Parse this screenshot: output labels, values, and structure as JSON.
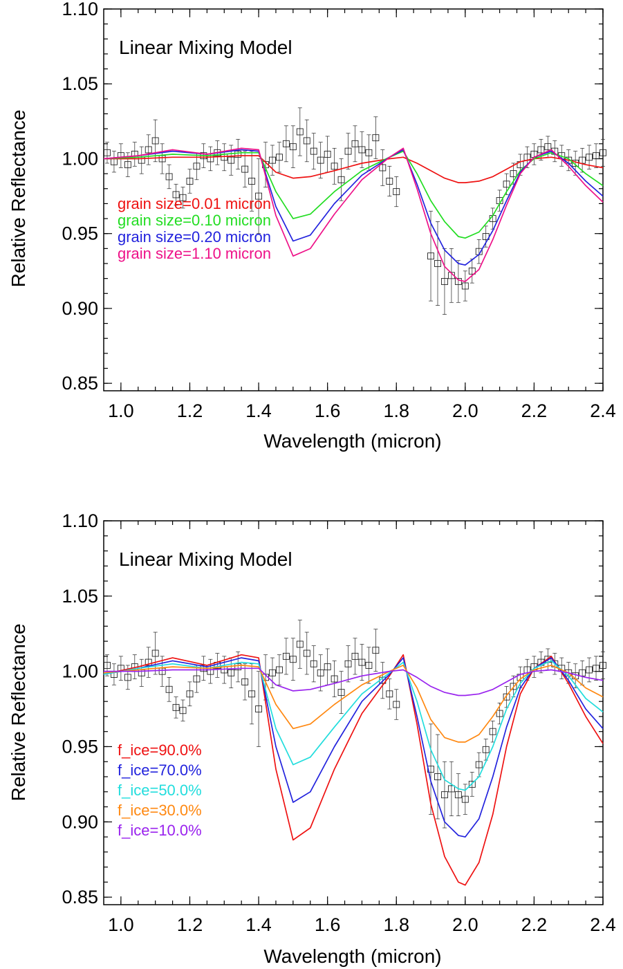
{
  "chart_data": [
    {
      "type": "line",
      "title": "Linear Mixing Model",
      "xlabel": "Wavelength (micron)",
      "ylabel": "Relative Reflectance",
      "xlim": [
        0.95,
        2.4
      ],
      "ylim": [
        0.845,
        1.1
      ],
      "xticks": [
        "1.0",
        "1.2",
        "1.4",
        "1.6",
        "1.8",
        "2.0",
        "2.2",
        "2.4"
      ],
      "yticks": [
        "0.85",
        "0.90",
        "0.95",
        "1.00",
        "1.05",
        "1.10"
      ],
      "x": [
        0.95,
        1.05,
        1.15,
        1.25,
        1.35,
        1.4,
        1.45,
        1.5,
        1.55,
        1.62,
        1.7,
        1.78,
        1.82,
        1.86,
        1.9,
        1.94,
        1.98,
        2.0,
        2.04,
        2.08,
        2.12,
        2.16,
        2.2,
        2.25,
        2.3,
        2.35,
        2.4
      ],
      "series": [
        {
          "name": "grain size=0.01 micron",
          "color": "#ee1111",
          "values": [
            1.0,
            1.0,
            1.001,
            1.001,
            1.002,
            1.002,
            0.991,
            0.987,
            0.988,
            0.992,
            0.997,
            1.0,
            1.001,
            0.997,
            0.992,
            0.987,
            0.984,
            0.984,
            0.985,
            0.988,
            0.993,
            0.998,
            1.0,
            1.001,
            0.999,
            0.996,
            0.994
          ]
        },
        {
          "name": "grain size=0.10 micron",
          "color": "#22dd22",
          "values": [
            1.0,
            1.001,
            1.003,
            1.002,
            1.004,
            1.004,
            0.978,
            0.96,
            0.963,
            0.978,
            0.992,
            1.001,
            1.005,
            0.99,
            0.972,
            0.958,
            0.948,
            0.947,
            0.951,
            0.962,
            0.978,
            0.992,
            1.0,
            1.004,
            1.0,
            0.99,
            0.982
          ]
        },
        {
          "name": "grain size=0.20 micron",
          "color": "#2222dd",
          "values": [
            1.0,
            1.002,
            1.005,
            1.003,
            1.006,
            1.005,
            0.968,
            0.945,
            0.949,
            0.97,
            0.989,
            1.001,
            1.006,
            0.983,
            0.957,
            0.939,
            0.93,
            0.929,
            0.936,
            0.952,
            0.972,
            0.991,
            1.001,
            1.005,
            0.997,
            0.985,
            0.975
          ]
        },
        {
          "name": "grain size=1.10 micron",
          "color": "#ee1188",
          "values": [
            1.0,
            1.002,
            1.006,
            1.003,
            1.007,
            1.006,
            0.962,
            0.935,
            0.94,
            0.963,
            0.986,
            1.001,
            1.007,
            0.98,
            0.95,
            0.928,
            0.919,
            0.918,
            0.926,
            0.946,
            0.969,
            0.99,
            1.001,
            1.006,
            0.995,
            0.982,
            0.971
          ]
        }
      ]
    },
    {
      "type": "line",
      "title": "Linear Mixing Model",
      "xlabel": "Wavelength (micron)",
      "ylabel": "Relative Reflectance",
      "xlim": [
        0.95,
        2.4
      ],
      "ylim": [
        0.845,
        1.1
      ],
      "xticks": [
        "1.0",
        "1.2",
        "1.4",
        "1.6",
        "1.8",
        "2.0",
        "2.2",
        "2.4"
      ],
      "yticks": [
        "0.85",
        "0.90",
        "0.95",
        "1.00",
        "1.05",
        "1.10"
      ],
      "x": [
        0.95,
        1.05,
        1.15,
        1.25,
        1.35,
        1.4,
        1.45,
        1.5,
        1.55,
        1.62,
        1.7,
        1.78,
        1.82,
        1.86,
        1.9,
        1.94,
        1.98,
        2.0,
        2.04,
        2.08,
        2.12,
        2.16,
        2.2,
        2.25,
        2.3,
        2.35,
        2.4
      ],
      "series": [
        {
          "name": "f_ice=90.0%",
          "color": "#ee1111",
          "values": [
            0.998,
            1.003,
            1.009,
            1.004,
            1.011,
            1.009,
            0.935,
            0.888,
            0.896,
            0.935,
            0.972,
            0.997,
            1.011,
            0.965,
            0.912,
            0.877,
            0.86,
            0.858,
            0.873,
            0.905,
            0.95,
            0.985,
            1.002,
            1.01,
            0.992,
            0.97,
            0.952
          ]
        },
        {
          "name": "f_ice=70.0%",
          "color": "#2222dd",
          "values": [
            0.998,
            1.002,
            1.007,
            1.003,
            1.009,
            1.007,
            0.95,
            0.913,
            0.92,
            0.95,
            0.98,
            0.998,
            1.009,
            0.97,
            0.927,
            0.9,
            0.891,
            0.89,
            0.902,
            0.93,
            0.963,
            0.989,
            1.002,
            1.009,
            0.994,
            0.975,
            0.962
          ]
        },
        {
          "name": "f_ice=50.0%",
          "color": "#22dddd",
          "values": [
            0.998,
            1.002,
            1.005,
            1.002,
            1.006,
            1.005,
            0.962,
            0.938,
            0.943,
            0.963,
            0.985,
            0.999,
            1.006,
            0.98,
            0.948,
            0.928,
            0.922,
            0.921,
            0.93,
            0.95,
            0.975,
            0.992,
            1.002,
            1.007,
            0.997,
            0.982,
            0.973
          ]
        },
        {
          "name": "f_ice=30.0%",
          "color": "#ff8811",
          "values": [
            0.999,
            1.001,
            1.003,
            1.002,
            1.004,
            1.003,
            0.978,
            0.962,
            0.965,
            0.978,
            0.991,
            1.0,
            1.004,
            0.989,
            0.968,
            0.956,
            0.953,
            0.953,
            0.958,
            0.97,
            0.984,
            0.995,
            1.001,
            1.004,
            0.999,
            0.989,
            0.983
          ]
        },
        {
          "name": "f_ice=10.0%",
          "color": "#9922ee",
          "values": [
            1.0,
            1.0,
            1.001,
            1.001,
            1.002,
            1.002,
            0.991,
            0.987,
            0.988,
            0.992,
            0.997,
            1.0,
            1.001,
            0.996,
            0.99,
            0.986,
            0.984,
            0.984,
            0.985,
            0.988,
            0.993,
            0.998,
            1.0,
            1.001,
            0.999,
            0.996,
            0.994
          ]
        }
      ]
    }
  ],
  "observed": {
    "x": [
      0.96,
      0.98,
      1.0,
      1.02,
      1.04,
      1.06,
      1.08,
      1.1,
      1.12,
      1.14,
      1.16,
      1.18,
      1.2,
      1.22,
      1.24,
      1.26,
      1.28,
      1.3,
      1.32,
      1.34,
      1.36,
      1.38,
      1.4,
      1.42,
      1.44,
      1.46,
      1.48,
      1.5,
      1.52,
      1.54,
      1.56,
      1.58,
      1.6,
      1.62,
      1.64,
      1.66,
      1.68,
      1.7,
      1.72,
      1.74,
      1.76,
      1.78,
      1.8,
      1.9,
      1.92,
      1.94,
      1.96,
      1.98,
      2.0,
      2.02,
      2.04,
      2.06,
      2.08,
      2.1,
      2.12,
      2.14,
      2.16,
      2.18,
      2.2,
      2.22,
      2.24,
      2.26,
      2.28,
      2.3,
      2.32,
      2.34,
      2.36,
      2.38,
      2.4
    ],
    "y": [
      1.004,
      0.998,
      1.002,
      0.996,
      1.003,
      0.999,
      1.006,
      1.012,
      1.0,
      0.988,
      0.976,
      0.974,
      0.985,
      0.995,
      1.002,
      1.0,
      1.004,
      1.001,
      0.999,
      1.003,
      0.993,
      0.985,
      0.975,
      0.996,
      0.999,
      1.001,
      1.01,
      1.008,
      1.018,
      1.012,
      1.005,
      0.999,
      1.003,
      0.995,
      0.986,
      1.005,
      1.01,
      1.006,
      1.004,
      1.014,
      0.994,
      0.985,
      0.978,
      0.935,
      0.93,
      0.918,
      0.922,
      0.918,
      0.915,
      0.925,
      0.938,
      0.948,
      0.96,
      0.972,
      0.983,
      0.99,
      0.996,
      1.001,
      1.003,
      1.006,
      1.008,
      1.005,
      1.002,
      0.999,
      0.997,
      0.999,
      1.001,
      1.002,
      1.004
    ],
    "err": [
      0.007,
      0.007,
      0.008,
      0.008,
      0.008,
      0.009,
      0.01,
      0.014,
      0.01,
      0.008,
      0.007,
      0.007,
      0.008,
      0.009,
      0.008,
      0.008,
      0.008,
      0.009,
      0.01,
      0.01,
      0.012,
      0.02,
      0.025,
      0.015,
      0.01,
      0.01,
      0.012,
      0.014,
      0.016,
      0.014,
      0.012,
      0.012,
      0.012,
      0.012,
      0.014,
      0.012,
      0.012,
      0.012,
      0.012,
      0.014,
      0.012,
      0.01,
      0.01,
      0.03,
      0.028,
      0.022,
      0.018,
      0.014,
      0.01,
      0.008,
      0.008,
      0.007,
      0.007,
      0.007,
      0.007,
      0.007,
      0.007,
      0.007,
      0.007,
      0.007,
      0.007,
      0.007,
      0.007,
      0.007,
      0.008,
      0.008,
      0.008,
      0.008,
      0.009
    ]
  }
}
